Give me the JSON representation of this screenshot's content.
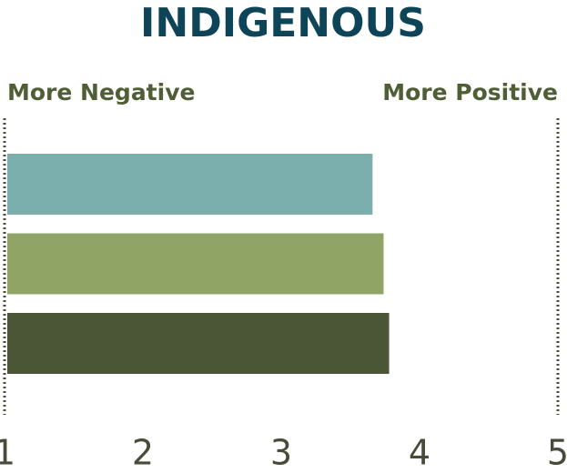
{
  "chart_data": {
    "type": "hbar",
    "title": "INDIGENOUS",
    "annotations": [
      "More Negative",
      "More Positive"
    ],
    "categories": [
      null,
      null,
      null
    ],
    "values": [
      3.66,
      3.74,
      3.78
    ],
    "colors": [
      "#7aafad",
      "#8fa465",
      "#4a5636"
    ],
    "xlim": [
      1,
      5
    ],
    "xticks": [
      1,
      2,
      3,
      4,
      5
    ],
    "grid": false
  }
}
